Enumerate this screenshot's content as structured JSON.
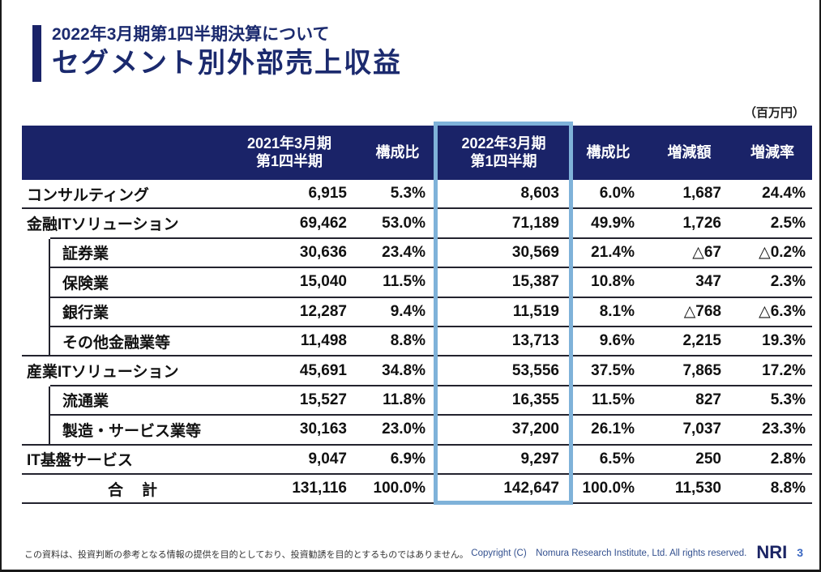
{
  "slide": {
    "eyebrow": "2022年3月期第1四半期決算について",
    "title": "セグメント別外部売上収益",
    "unit_note": "（百万円）"
  },
  "table": {
    "headers": {
      "period_2021_line1": "2021年3月期",
      "period_2021_line2": "第1四半期",
      "pct_2021": "構成比",
      "period_2022_line1": "2022年3月期",
      "period_2022_line2": "第1四半期",
      "pct_2022": "構成比",
      "diff": "増減額",
      "rate": "増減率"
    },
    "rows": [
      {
        "label": "コンサルティング",
        "v2021": "6,915",
        "p2021": "5.3%",
        "v2022": "8,603",
        "p2022": "6.0%",
        "diff": "1,687",
        "rate": "24.4%"
      },
      {
        "label": "金融ITソリューション",
        "v2021": "69,462",
        "p2021": "53.0%",
        "v2022": "71,189",
        "p2022": "49.9%",
        "diff": "1,726",
        "rate": "2.5%"
      },
      {
        "label": "証券業",
        "v2021": "30,636",
        "p2021": "23.4%",
        "v2022": "30,569",
        "p2022": "21.4%",
        "diff": "△67",
        "rate": "△0.2%"
      },
      {
        "label": "保険業",
        "v2021": "15,040",
        "p2021": "11.5%",
        "v2022": "15,387",
        "p2022": "10.8%",
        "diff": "347",
        "rate": "2.3%"
      },
      {
        "label": "銀行業",
        "v2021": "12,287",
        "p2021": "9.4%",
        "v2022": "11,519",
        "p2022": "8.1%",
        "diff": "△768",
        "rate": "△6.3%"
      },
      {
        "label": "その他金融業等",
        "v2021": "11,498",
        "p2021": "8.8%",
        "v2022": "13,713",
        "p2022": "9.6%",
        "diff": "2,215",
        "rate": "19.3%"
      },
      {
        "label": "産業ITソリューション",
        "v2021": "45,691",
        "p2021": "34.8%",
        "v2022": "53,556",
        "p2022": "37.5%",
        "diff": "7,865",
        "rate": "17.2%"
      },
      {
        "label": "流通業",
        "v2021": "15,527",
        "p2021": "11.8%",
        "v2022": "16,355",
        "p2022": "11.5%",
        "diff": "827",
        "rate": "5.3%"
      },
      {
        "label": "製造・サービス業等",
        "v2021": "30,163",
        "p2021": "23.0%",
        "v2022": "37,200",
        "p2022": "26.1%",
        "diff": "7,037",
        "rate": "23.3%"
      },
      {
        "label": "IT基盤サービス",
        "v2021": "9,047",
        "p2021": "6.9%",
        "v2022": "9,297",
        "p2022": "6.5%",
        "diff": "250",
        "rate": "2.8%"
      },
      {
        "label": "合　計",
        "v2021": "131,116",
        "p2021": "100.0%",
        "v2022": "142,647",
        "p2022": "100.0%",
        "diff": "11,530",
        "rate": "8.8%"
      }
    ]
  },
  "footer": {
    "disclaimer": "この資料は、投資判断の参考となる情報の提供を目的としており、投資勧誘を目的とするものではありません。",
    "copyright": "Copyright (C)　Nomura Research Institute, Ltd. All rights reserved.",
    "logo": "NRI",
    "page_number": "3"
  },
  "colors": {
    "navy_header": "#1a2368",
    "navy_title": "#1b2a6e",
    "highlight_border": "#7fb2d9",
    "row_line": "#23232e",
    "copyright_blue": "#33508f",
    "page_number_blue": "#3a67c2"
  }
}
